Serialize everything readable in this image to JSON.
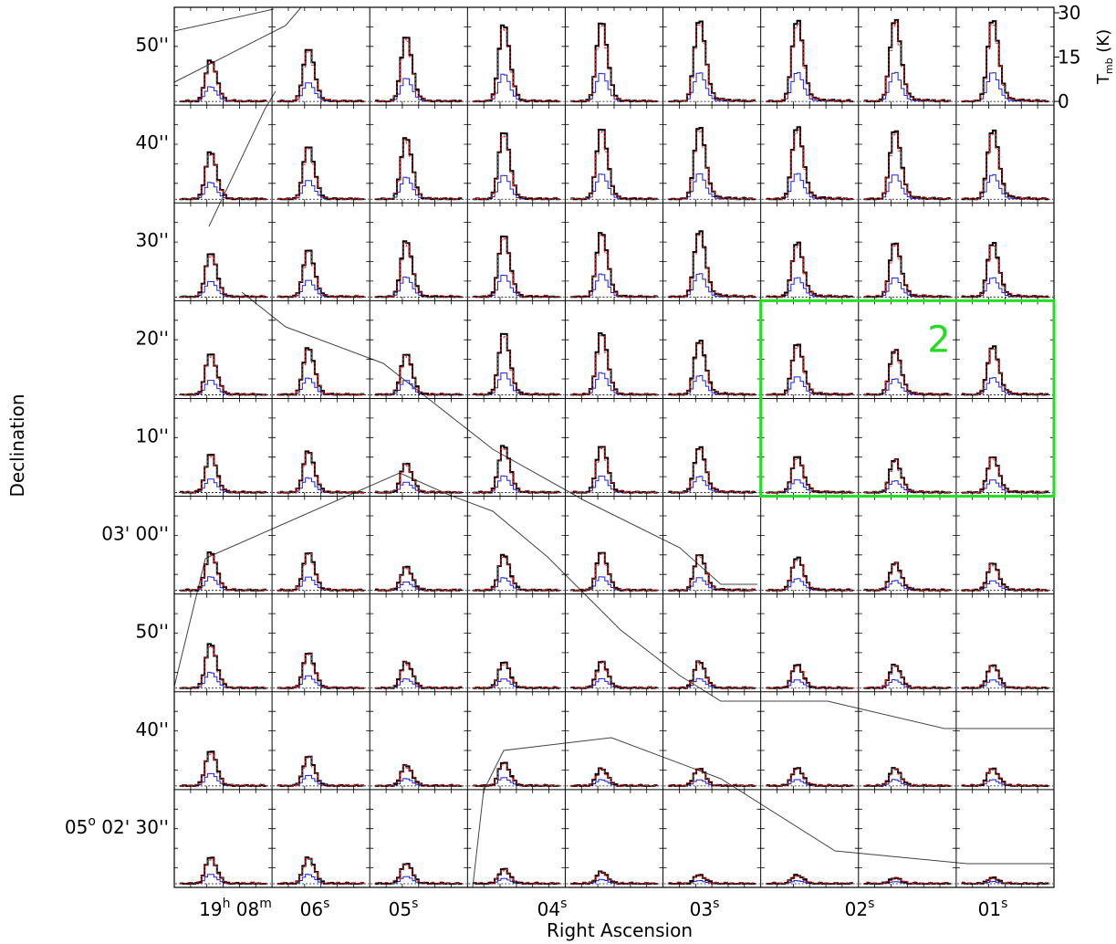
{
  "chart_data": {
    "type": "line",
    "xlabel": "Right Ascension",
    "ylabel": "Declination",
    "y2label": "T_mb (K)",
    "x_ticks": [
      {
        "main": "19",
        "sup": "h",
        "main2": "08",
        "sup2": "m"
      },
      {
        "main": "06",
        "sup": "s"
      },
      {
        "main": "05",
        "sup": "s"
      },
      {
        "main": "04",
        "sup": "s"
      },
      {
        "main": "03",
        "sup": "s"
      },
      {
        "main": "02",
        "sup": "s"
      },
      {
        "main": "01",
        "sup": "s"
      }
    ],
    "y_ticks": [
      {
        "label": "50''",
        "row": 0
      },
      {
        "label": "40''",
        "row": 1
      },
      {
        "label": "30''",
        "row": 2
      },
      {
        "label": "20''",
        "row": 3
      },
      {
        "label": "10''",
        "row": 4
      },
      {
        "label": "03' 00''",
        "row": 5
      },
      {
        "label": "50''",
        "row": 6
      },
      {
        "label": "40''",
        "row": 7
      },
      {
        "label": "05",
        "sup": "o",
        "rest": " 02' 30''",
        "row": 8
      }
    ],
    "tmb_ticks": [
      0,
      15,
      30
    ],
    "tmb_range": [
      0,
      30
    ],
    "grid": {
      "rows": 9,
      "cols": 9
    },
    "series": [
      {
        "color": "#000000"
      },
      {
        "color": "#ee2222"
      },
      {
        "color": "#1e1ee0"
      }
    ],
    "peaks": [
      [
        14,
        18,
        22,
        26,
        27,
        27,
        27,
        27,
        27
      ],
      [
        16,
        18,
        21,
        23,
        24,
        24,
        24,
        23,
        23
      ],
      [
        15,
        16,
        19,
        21,
        22,
        22,
        18,
        18,
        18
      ],
      [
        14,
        16,
        14,
        21,
        21,
        18,
        17,
        15,
        16
      ],
      [
        13,
        14,
        10,
        16,
        16,
        15,
        12,
        11,
        12
      ],
      [
        13,
        13,
        8,
        12,
        13,
        12,
        11,
        9,
        9
      ],
      [
        15,
        12,
        9,
        9,
        9,
        9,
        8,
        8,
        8
      ],
      [
        12,
        10,
        7,
        8,
        6,
        6,
        6,
        6,
        6
      ],
      [
        9,
        9,
        7,
        5,
        4,
        3,
        3,
        2,
        2
      ]
    ],
    "highlight": {
      "label": "2",
      "color": "#22dd22",
      "rows": [
        3,
        4
      ],
      "cols": [
        6,
        8
      ]
    },
    "boundary_color": "#444444"
  }
}
